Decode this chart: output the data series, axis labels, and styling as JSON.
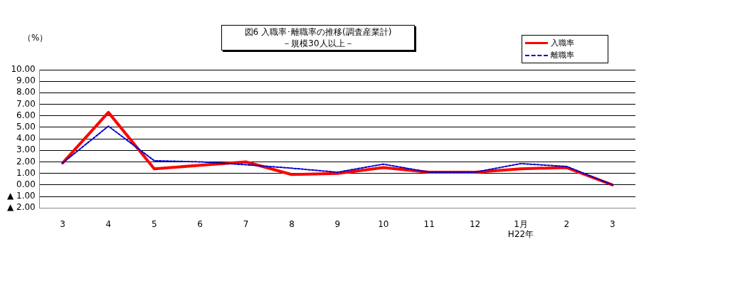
{
  "chart_data": {
    "type": "line",
    "title": "図6  入職率･離職率の推移(調査産業計)",
    "subtitle": "－規模30人以上－",
    "ylabel": "（%）",
    "categories": [
      "3",
      "4",
      "5",
      "6",
      "7",
      "8",
      "9",
      "10",
      "11",
      "12",
      "1月\nH22年",
      "2",
      "3"
    ],
    "series": [
      {
        "name": "入職率",
        "color": "#ff0000",
        "line_style": "solid",
        "values": [
          1.9,
          6.3,
          1.4,
          1.7,
          2.0,
          0.9,
          1.0,
          1.5,
          1.1,
          1.1,
          1.4,
          1.5,
          0.0
        ]
      },
      {
        "name": "離職率",
        "color": "#0000cc",
        "line_style": "dashed",
        "values": [
          1.9,
          5.1,
          2.1,
          2.0,
          1.75,
          1.45,
          1.1,
          1.8,
          1.1,
          1.1,
          1.85,
          1.6,
          0.0
        ]
      }
    ],
    "ylim": [
      -2,
      10
    ],
    "yticks": [
      {
        "value": -2,
        "label": "▲ 2.00"
      },
      {
        "value": -1,
        "label": "▲ 1.00"
      },
      {
        "value": 0,
        "label": "0.00"
      },
      {
        "value": 1,
        "label": "1.00"
      },
      {
        "value": 2,
        "label": "2.00"
      },
      {
        "value": 3,
        "label": "3.00"
      },
      {
        "value": 4,
        "label": "4.00"
      },
      {
        "value": 5,
        "label": "5.00"
      },
      {
        "value": 6,
        "label": "6.00"
      },
      {
        "value": 7,
        "label": "7.00"
      },
      {
        "value": 8,
        "label": "8.00"
      },
      {
        "value": 9,
        "label": "9.00"
      },
      {
        "value": 10,
        "label": "10.00"
      }
    ],
    "grid": "y",
    "legend": "top right",
    "marker": "none"
  }
}
